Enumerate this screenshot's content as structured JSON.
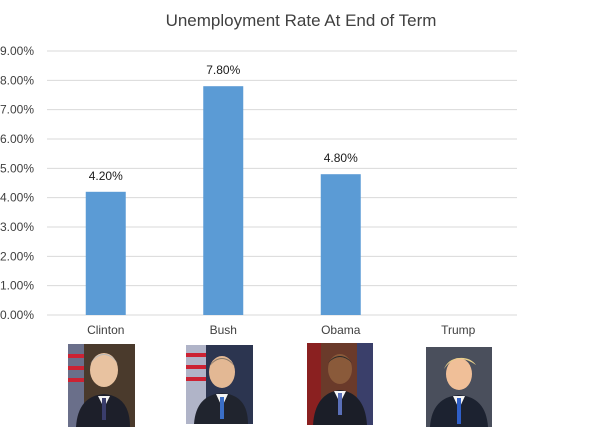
{
  "chart_data": {
    "type": "bar",
    "title": "Unemployment Rate At End of Term",
    "categories": [
      "Clinton",
      "Bush",
      "Obama",
      "Trump"
    ],
    "values": [
      4.2,
      7.8,
      4.8,
      null
    ],
    "value_labels": [
      "4.20%",
      "7.80%",
      "4.80%",
      ""
    ],
    "yticks": [
      "0.00%",
      "1.00%",
      "2.00%",
      "3.00%",
      "4.00%",
      "5.00%",
      "6.00%",
      "7.00%",
      "8.00%",
      "9.00%"
    ],
    "ylim": [
      0,
      9
    ],
    "grid": true,
    "legend": "none",
    "bar_color": "#5b9bd5"
  },
  "portraits": [
    {
      "icon": "portrait-photo-icon",
      "category": "Clinton"
    },
    {
      "icon": "portrait-photo-icon",
      "category": "Bush"
    },
    {
      "icon": "portrait-photo-icon",
      "category": "Obama"
    },
    {
      "icon": "portrait-photo-icon",
      "category": "Trump"
    }
  ]
}
